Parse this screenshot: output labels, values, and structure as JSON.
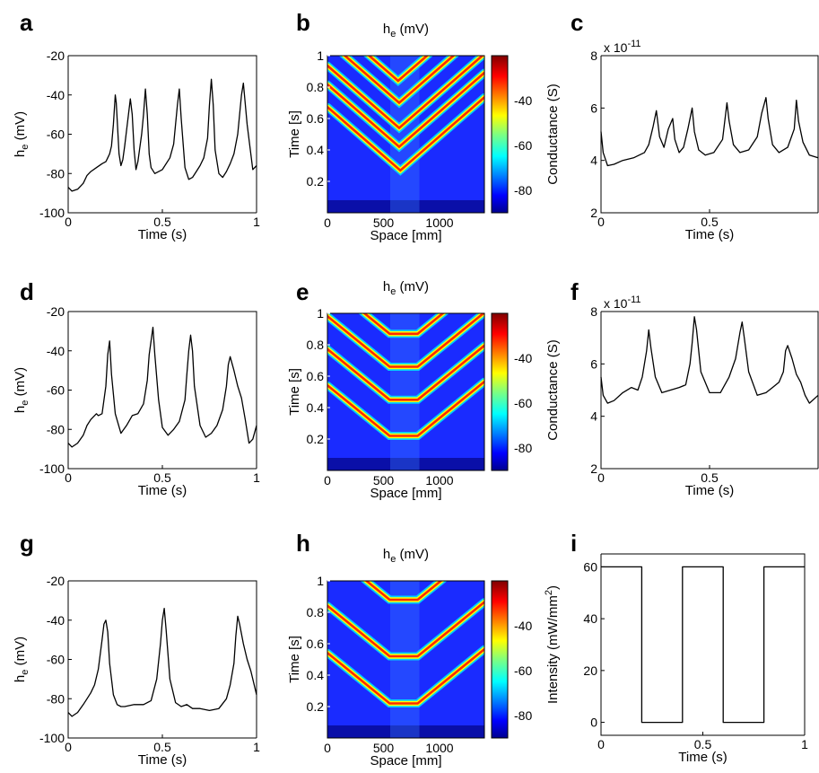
{
  "chart_data": [
    {
      "panel": "a",
      "type": "line",
      "xlabel": "Time (s)",
      "ylabel": "h_e (mV)",
      "xlim": [
        0,
        1
      ],
      "ylim": [
        -100,
        -20
      ],
      "xticks": [
        0,
        0.5,
        1
      ],
      "yticks": [
        -100,
        -80,
        -60,
        -40,
        -20
      ],
      "series": [
        {
          "x": [
            0,
            0.02,
            0.05,
            0.08,
            0.1,
            0.12,
            0.15,
            0.18,
            0.2,
            0.21,
            0.22,
            0.23,
            0.24,
            0.25,
            0.255,
            0.27,
            0.28,
            0.29,
            0.3,
            0.31,
            0.33,
            0.34,
            0.35,
            0.36,
            0.37,
            0.38,
            0.39,
            0.4,
            0.41,
            0.42,
            0.43,
            0.44,
            0.46,
            0.5,
            0.54,
            0.56,
            0.57,
            0.58,
            0.59,
            0.6,
            0.62,
            0.64,
            0.66,
            0.68,
            0.7,
            0.72,
            0.74,
            0.75,
            0.76,
            0.77,
            0.78,
            0.8,
            0.82,
            0.84,
            0.86,
            0.88,
            0.9,
            0.92,
            0.93,
            0.95,
            0.98,
            1.0
          ],
          "y": [
            -87,
            -89,
            -88,
            -85,
            -81,
            -79,
            -77,
            -75,
            -74,
            -72,
            -70,
            -66,
            -55,
            -40,
            -44,
            -70,
            -76,
            -73,
            -66,
            -58,
            -42,
            -50,
            -68,
            -78,
            -74,
            -67,
            -60,
            -50,
            -37,
            -50,
            -70,
            -77,
            -80,
            -78,
            -72,
            -65,
            -55,
            -45,
            -37,
            -52,
            -77,
            -83,
            -82,
            -79,
            -76,
            -72,
            -62,
            -45,
            -32,
            -45,
            -68,
            -80,
            -82,
            -79,
            -75,
            -70,
            -60,
            -40,
            -34,
            -55,
            -78,
            -76
          ]
        }
      ]
    },
    {
      "panel": "b",
      "type": "heatmap",
      "title": "h_e (mV)",
      "xlabel": "Space [mm]",
      "ylabel": "Time [s]",
      "xlim": [
        0,
        1400
      ],
      "ylim": [
        0,
        1
      ],
      "xticks": [
        0,
        500,
        1000
      ],
      "yticks": [
        0.2,
        0.4,
        0.6,
        0.8,
        1
      ],
      "colorbar": {
        "ticks": [
          -40,
          -60,
          -80
        ],
        "range": [
          -90,
          -20
        ]
      },
      "waves": [
        {
          "center": 650,
          "t0": 0.27,
          "slope": 0.00062,
          "flat": 0
        },
        {
          "center": 640,
          "t0": 0.42,
          "slope": 0.00062,
          "flat": 0
        },
        {
          "center": 640,
          "t0": 0.54,
          "slope": 0.00062,
          "flat": 0
        },
        {
          "center": 640,
          "t0": 0.7,
          "slope": 0.00062,
          "flat": 0
        },
        {
          "center": 630,
          "t0": 0.84,
          "slope": 0.00062,
          "flat": 0
        }
      ],
      "noise_band": [
        560,
        820
      ]
    },
    {
      "panel": "c",
      "type": "line",
      "xlabel": "Time (s)",
      "ylabel": "Conductance (S)",
      "exponent": "x 10",
      "exponent_power": "-11",
      "xlim": [
        0,
        1
      ],
      "ylim": [
        2,
        8
      ],
      "xticks": [
        0,
        0.5
      ],
      "yticks": [
        2,
        4,
        6,
        8
      ],
      "series": [
        {
          "x": [
            0,
            0.01,
            0.03,
            0.06,
            0.1,
            0.15,
            0.2,
            0.22,
            0.24,
            0.255,
            0.27,
            0.29,
            0.31,
            0.33,
            0.34,
            0.36,
            0.38,
            0.4,
            0.42,
            0.43,
            0.45,
            0.48,
            0.52,
            0.56,
            0.58,
            0.59,
            0.61,
            0.64,
            0.68,
            0.72,
            0.74,
            0.76,
            0.77,
            0.79,
            0.82,
            0.86,
            0.89,
            0.9,
            0.91,
            0.93,
            0.96,
            1.0
          ],
          "y": [
            5.1,
            4.3,
            3.8,
            3.85,
            4.0,
            4.1,
            4.3,
            4.6,
            5.3,
            5.9,
            4.9,
            4.5,
            5.2,
            5.6,
            4.8,
            4.3,
            4.5,
            5.2,
            6.0,
            5.1,
            4.4,
            4.2,
            4.3,
            4.8,
            6.2,
            5.5,
            4.6,
            4.3,
            4.4,
            4.9,
            5.8,
            6.4,
            5.6,
            4.6,
            4.3,
            4.5,
            5.2,
            6.3,
            5.5,
            4.7,
            4.2,
            4.1
          ]
        }
      ]
    },
    {
      "panel": "d",
      "type": "line",
      "xlabel": "Time (s)",
      "ylabel": "h_e (mV)",
      "xlim": [
        0,
        1
      ],
      "ylim": [
        -100,
        -20
      ],
      "xticks": [
        0,
        0.5,
        1
      ],
      "yticks": [
        -100,
        -80,
        -60,
        -40,
        -20
      ],
      "series": [
        {
          "x": [
            0,
            0.02,
            0.05,
            0.08,
            0.1,
            0.12,
            0.14,
            0.15,
            0.16,
            0.18,
            0.2,
            0.21,
            0.22,
            0.23,
            0.25,
            0.28,
            0.31,
            0.34,
            0.37,
            0.4,
            0.42,
            0.43,
            0.44,
            0.45,
            0.46,
            0.48,
            0.5,
            0.53,
            0.56,
            0.59,
            0.62,
            0.63,
            0.64,
            0.65,
            0.66,
            0.67,
            0.7,
            0.73,
            0.76,
            0.79,
            0.82,
            0.84,
            0.85,
            0.86,
            0.88,
            0.9,
            0.92,
            0.94,
            0.96,
            0.98,
            1.0
          ],
          "y": [
            -87,
            -89,
            -87,
            -83,
            -78,
            -75,
            -73,
            -72,
            -73,
            -72,
            -58,
            -42,
            -35,
            -52,
            -72,
            -82,
            -78,
            -73,
            -72,
            -67,
            -55,
            -42,
            -35,
            -28,
            -42,
            -65,
            -79,
            -83,
            -80,
            -76,
            -65,
            -52,
            -40,
            -32,
            -40,
            -58,
            -78,
            -84,
            -82,
            -78,
            -70,
            -58,
            -47,
            -43,
            -50,
            -58,
            -64,
            -75,
            -87,
            -85,
            -78
          ]
        }
      ]
    },
    {
      "panel": "e",
      "type": "heatmap",
      "title": "h_e (mV)",
      "xlabel": "Space [mm]",
      "ylabel": "Time [s]",
      "xlim": [
        0,
        1400
      ],
      "ylim": [
        0,
        1
      ],
      "xticks": [
        0,
        500,
        1000
      ],
      "yticks": [
        0.2,
        0.4,
        0.6,
        0.8,
        1
      ],
      "colorbar": {
        "ticks": [
          -40,
          -60,
          -80
        ],
        "range": [
          -90,
          -20
        ]
      },
      "waves": [
        {
          "center": 680,
          "t0": 0.22,
          "slope": 0.00058,
          "flat": 250
        },
        {
          "center": 680,
          "t0": 0.45,
          "slope": 0.00058,
          "flat": 250
        },
        {
          "center": 680,
          "t0": 0.66,
          "slope": 0.00058,
          "flat": 250
        },
        {
          "center": 680,
          "t0": 0.87,
          "slope": 0.00058,
          "flat": 250
        }
      ],
      "noise_band": [
        560,
        820
      ]
    },
    {
      "panel": "f",
      "type": "line",
      "xlabel": "Time (s)",
      "ylabel": "Conductance (S)",
      "exponent": "x 10",
      "exponent_power": "-11",
      "xlim": [
        0,
        1
      ],
      "ylim": [
        2,
        8
      ],
      "xticks": [
        0,
        0.5
      ],
      "yticks": [
        2,
        4,
        6,
        8
      ],
      "series": [
        {
          "x": [
            0,
            0.01,
            0.03,
            0.06,
            0.1,
            0.14,
            0.17,
            0.19,
            0.21,
            0.22,
            0.23,
            0.25,
            0.28,
            0.32,
            0.36,
            0.39,
            0.41,
            0.42,
            0.43,
            0.44,
            0.46,
            0.5,
            0.55,
            0.59,
            0.62,
            0.64,
            0.65,
            0.66,
            0.68,
            0.72,
            0.76,
            0.79,
            0.82,
            0.84,
            0.85,
            0.86,
            0.88,
            0.9,
            0.92,
            0.94,
            0.96,
            1.0
          ],
          "y": [
            5.5,
            4.8,
            4.5,
            4.6,
            4.9,
            5.1,
            5.0,
            5.5,
            6.5,
            7.3,
            6.6,
            5.5,
            4.9,
            5.0,
            5.1,
            5.2,
            6.0,
            6.8,
            7.8,
            7.3,
            5.7,
            4.9,
            4.9,
            5.5,
            6.2,
            7.2,
            7.6,
            7.0,
            5.7,
            4.8,
            4.9,
            5.1,
            5.3,
            5.7,
            6.5,
            6.7,
            6.2,
            5.6,
            5.3,
            4.8,
            4.5,
            4.8
          ]
        }
      ]
    },
    {
      "panel": "g",
      "type": "line",
      "xlabel": "Time (s)",
      "ylabel": "h_e (mV)",
      "xlim": [
        0,
        1
      ],
      "ylim": [
        -100,
        -20
      ],
      "xticks": [
        0,
        0.5,
        1
      ],
      "yticks": [
        -100,
        -80,
        -60,
        -40,
        -20
      ],
      "series": [
        {
          "x": [
            0,
            0.02,
            0.05,
            0.08,
            0.1,
            0.12,
            0.14,
            0.16,
            0.18,
            0.19,
            0.2,
            0.21,
            0.22,
            0.24,
            0.26,
            0.28,
            0.3,
            0.35,
            0.4,
            0.44,
            0.47,
            0.49,
            0.5,
            0.51,
            0.52,
            0.54,
            0.57,
            0.6,
            0.63,
            0.66,
            0.7,
            0.75,
            0.8,
            0.84,
            0.86,
            0.88,
            0.89,
            0.9,
            0.91,
            0.93,
            0.95,
            0.97,
            0.99,
            1.0
          ],
          "y": [
            -87,
            -89,
            -87,
            -83,
            -80,
            -77,
            -73,
            -65,
            -50,
            -42,
            -40,
            -46,
            -62,
            -78,
            -83,
            -84,
            -84,
            -83,
            -83,
            -81,
            -70,
            -52,
            -40,
            -34,
            -45,
            -70,
            -82,
            -84,
            -83,
            -85,
            -85,
            -86,
            -85,
            -80,
            -73,
            -62,
            -48,
            -38,
            -42,
            -52,
            -60,
            -66,
            -74,
            -78
          ]
        }
      ]
    },
    {
      "panel": "h",
      "type": "heatmap",
      "title": "h_e (mV)",
      "xlabel": "Space [mm]",
      "ylabel": "Time [s]",
      "xlim": [
        0,
        1400
      ],
      "ylim": [
        0,
        1
      ],
      "xticks": [
        0,
        500,
        1000
      ],
      "yticks": [
        0.2,
        0.4,
        0.6,
        0.8,
        1
      ],
      "colorbar": {
        "ticks": [
          -40,
          -60,
          -80
        ],
        "range": [
          -90,
          -20
        ]
      },
      "waves": [
        {
          "center": 680,
          "t0": 0.22,
          "slope": 0.00058,
          "flat": 250
        },
        {
          "center": 680,
          "t0": 0.52,
          "slope": 0.00058,
          "flat": 250
        },
        {
          "center": 680,
          "t0": 0.88,
          "slope": 0.00058,
          "flat": 250
        }
      ],
      "noise_band": [
        560,
        820
      ]
    },
    {
      "panel": "i",
      "type": "line",
      "xlabel": "Time (s)",
      "ylabel": "Intensity (mW/mm",
      "ylabel_sup": "2",
      "ylabel_end": ")",
      "xlim": [
        0,
        1
      ],
      "ylim": [
        -5,
        65
      ],
      "xticks": [
        0,
        0.5,
        1
      ],
      "yticks": [
        0,
        20,
        40,
        60
      ],
      "series": [
        {
          "x": [
            0,
            0.2,
            0.2,
            0.4,
            0.4,
            0.6,
            0.6,
            0.8,
            0.8,
            1.0
          ],
          "y": [
            60,
            60,
            0,
            0,
            60,
            60,
            0,
            0,
            60,
            60
          ]
        }
      ]
    }
  ]
}
